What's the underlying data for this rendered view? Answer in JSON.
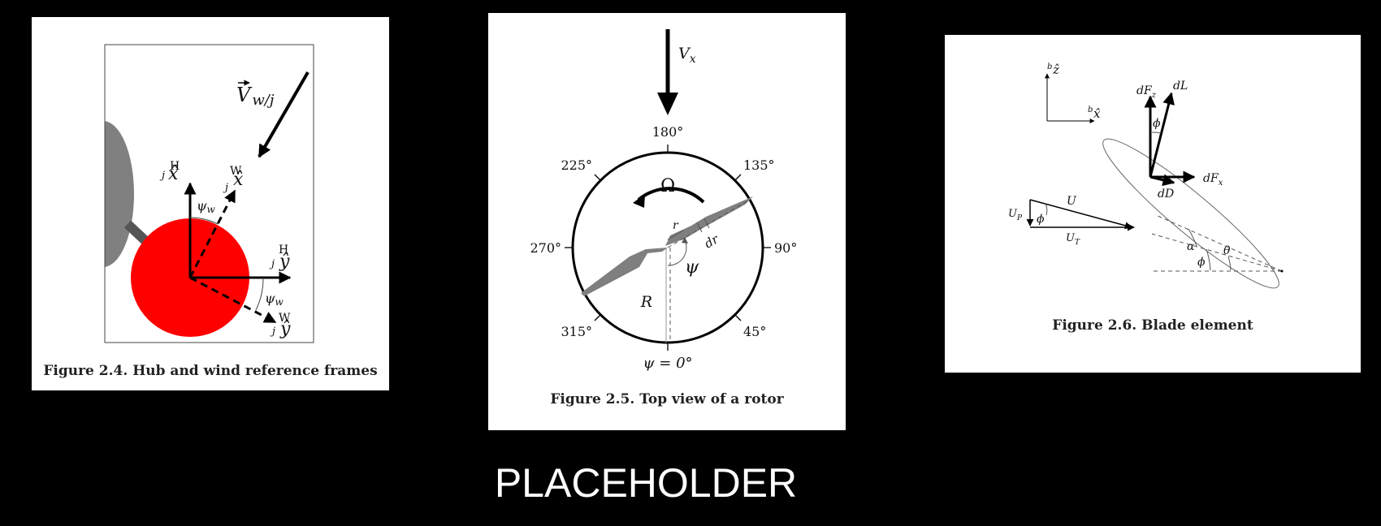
{
  "figures": [
    {
      "caption": "Figure 2.4. Hub and wind reference frames",
      "labels": {
        "wind_velocity": "V",
        "wind_velocity_sub": "w/j",
        "hub_x": "x̂",
        "hub_x_super": "H",
        "hub_x_sub": "j",
        "wind_x": "x̂",
        "wind_x_super": "W",
        "wind_x_sub": "j",
        "hub_y": "ŷ",
        "hub_y_super": "H",
        "hub_y_sub": "j",
        "wind_y": "ŷ",
        "wind_y_super": "W",
        "wind_y_sub": "j",
        "psi_w_top": "ψ",
        "psi_w_top_sub": "w",
        "psi_w_right": "ψ",
        "psi_w_right_sub": "w"
      }
    },
    {
      "caption": "Figure 2.5. Top view of a rotor",
      "labels": {
        "vx": "V",
        "vx_sub": "x",
        "omega": "Ω",
        "angles": {
          "a180": "180°",
          "a135": "135°",
          "a225": "225°",
          "a270": "270°",
          "a90": "90°",
          "a315": "315°",
          "a45": "45°"
        },
        "psi_zero": "ψ = 0°",
        "psi": "ψ",
        "r": "r",
        "dr": "dr",
        "R": "R"
      }
    },
    {
      "caption": "Figure 2.6. Blade element",
      "labels": {
        "bz": "ẑ",
        "bz_super": "b",
        "bx": "x̂",
        "bx_super": "b",
        "dFz": "dF",
        "dFz_sub": "z",
        "dL": "dL",
        "phi_top": "ϕ",
        "dFx": "dF",
        "dFx_sub": "x",
        "dD": "dD",
        "U": "U",
        "UP": "U",
        "UP_sub": "P",
        "phi_tri": "ϕ",
        "UT": "U",
        "UT_sub": "T",
        "alpha": "α",
        "theta": "θ",
        "phi_bottom": "ϕ"
      }
    }
  ],
  "placeholder": "PLACEHOLDER",
  "colors": {
    "hub": "#ff0000",
    "nacelle": "#808080",
    "blade": "#7f7f7f"
  }
}
